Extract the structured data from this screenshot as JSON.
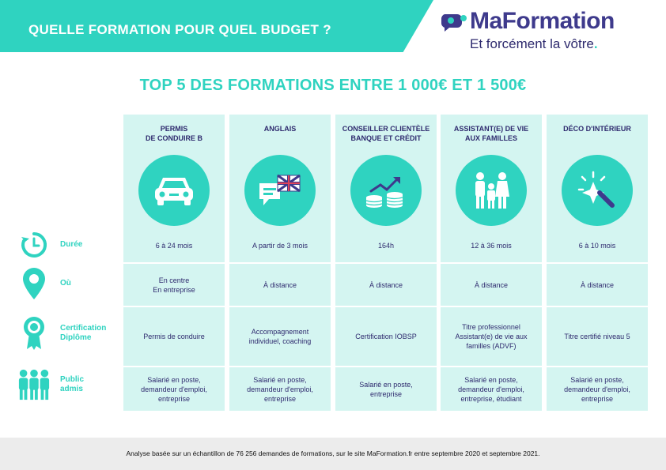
{
  "header": {
    "title": "QUELLE FORMATION POUR QUEL BUDGET ?",
    "brand_name": "MaFormation",
    "brand_tagline": "Et forcément la vôtre",
    "accent_color": "#2fd3c0",
    "brand_color": "#3e3a8c"
  },
  "main_title": "TOP 5 DES FORMATIONS ENTRE 1 000€ ET 1 500€",
  "row_labels": [
    {
      "label": "Durée",
      "icon": "clock-icon"
    },
    {
      "label": "Où",
      "icon": "location-pin-icon"
    },
    {
      "label": "Certification Diplôme",
      "icon": "award-rosette-icon"
    },
    {
      "label": "Public admis",
      "icon": "people-group-icon"
    }
  ],
  "columns": [
    {
      "name": "PERMIS DE CONDUIRE B",
      "icon": "car-icon",
      "duree": "6 à 24 mois",
      "ou": "En centre\nEn entreprise",
      "certification": "Permis de conduire",
      "public": "Salarié en poste, demandeur d'emploi, entreprise"
    },
    {
      "name": "ANGLAIS",
      "icon": "speech-bubble-uk-flag-icon",
      "duree": "A partir de 3 mois",
      "ou": "À distance",
      "certification": "Accompagnement individuel, coaching",
      "public": "Salarié en poste, demandeur d'emploi, entreprise"
    },
    {
      "name": "CONSEILLER CLIENTÈLE BANQUE ET CRÉDIT",
      "icon": "coins-growth-icon",
      "duree": "164h",
      "ou": "À distance",
      "certification": "Certification IOBSP",
      "public": "Salarié en poste, entreprise"
    },
    {
      "name": "ASSISTANT(E) DE VIE AUX FAMILLES",
      "icon": "family-icon",
      "duree": "12 à 36 mois",
      "ou": "À distance",
      "certification": "Titre professionnel Assistant(e) de vie aux familles (ADVF)",
      "public": "Salarié en poste, demandeur d'emploi, entreprise, étudiant"
    },
    {
      "name": "DÉCO D'INTÉRIEUR",
      "icon": "magic-wand-icon",
      "duree": "6 à 10 mois",
      "ou": "À distance",
      "certification": "Titre certifié niveau 5",
      "public": "Salarié en poste, demandeur d'emploi, entreprise"
    }
  ],
  "footer": "Analyse basée sur un échantillon de 76 256 demandes de formations, sur le site MaFormation.fr entre septembre 2020 et septembre 2021."
}
